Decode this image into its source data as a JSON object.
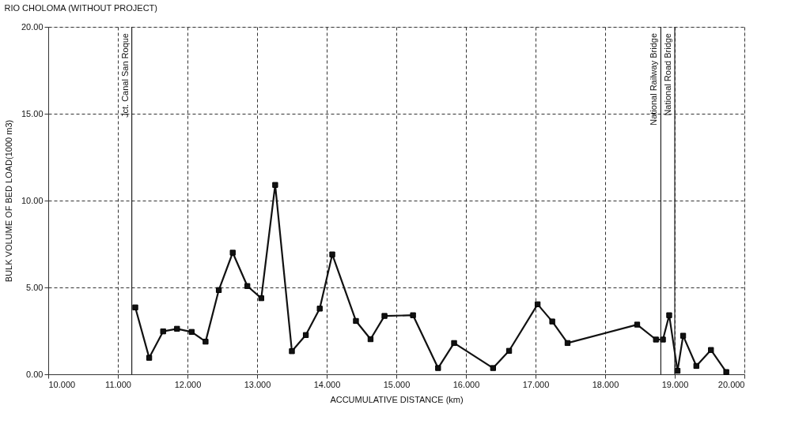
{
  "chart_data": {
    "type": "line",
    "title": "RIO CHOLOMA (WITHOUT PROJECT)",
    "xlabel": "ACCUMULATIVE DISTANCE (km)",
    "ylabel": "BULK VOLUME OF BED LOAD(1000 m3)",
    "x": [
      11.25,
      11.45,
      11.65,
      11.85,
      12.06,
      12.26,
      12.45,
      12.65,
      12.86,
      13.06,
      13.26,
      13.5,
      13.7,
      13.9,
      14.08,
      14.42,
      14.63,
      14.83,
      15.24,
      15.6,
      15.83,
      16.39,
      16.62,
      17.03,
      17.24,
      17.46,
      18.46,
      18.73,
      18.83,
      18.92,
      19.04,
      19.12,
      19.31,
      19.52,
      19.74
    ],
    "series": [
      {
        "color": "#111111",
        "values": [
          3.85,
          0.95,
          2.47,
          2.62,
          2.44,
          1.88,
          4.85,
          7.0,
          5.08,
          4.38,
          10.9,
          1.33,
          2.26,
          3.78,
          6.9,
          3.07,
          2.02,
          3.36,
          3.4,
          0.36,
          1.8,
          0.36,
          1.35,
          4.03,
          3.04,
          1.8,
          2.86,
          2.0,
          2.0,
          3.4,
          0.2,
          2.22,
          0.48,
          1.4,
          0.13
        ]
      }
    ],
    "xlim": [
      10,
      20
    ],
    "xticks": [
      {
        "value": 10,
        "label": "10.000"
      },
      {
        "value": 11,
        "label": "11.000"
      },
      {
        "value": 12,
        "label": "12.000"
      },
      {
        "value": 13,
        "label": "13.000"
      },
      {
        "value": 14,
        "label": "14.000"
      },
      {
        "value": 15,
        "label": "15.000"
      },
      {
        "value": 16,
        "label": "16.000"
      },
      {
        "value": 17,
        "label": "17.000"
      },
      {
        "value": 18,
        "label": "18.000"
      },
      {
        "value": 19,
        "label": "19.000"
      },
      {
        "value": 20,
        "label": "20.000"
      }
    ],
    "ylim": [
      0,
      20
    ],
    "yticks": [
      {
        "value": 0,
        "label": "0.00"
      },
      {
        "value": 5,
        "label": "5.00"
      },
      {
        "value": 10,
        "label": "10.00"
      },
      {
        "value": 15,
        "label": "15.00"
      },
      {
        "value": 20,
        "label": "20.00"
      }
    ],
    "ref_lines": [
      {
        "axis": "x",
        "value": 11.2,
        "label": "Jct. Canal San Roque",
        "color": "#222222"
      },
      {
        "axis": "x",
        "value": 18.8,
        "label": "National Railway Bridge",
        "color": "#222222"
      },
      {
        "axis": "x",
        "value": 19.0,
        "label": "National Road Bridge",
        "color": "#222222"
      }
    ],
    "grid": true,
    "marker": "square",
    "line_style": "solid"
  }
}
